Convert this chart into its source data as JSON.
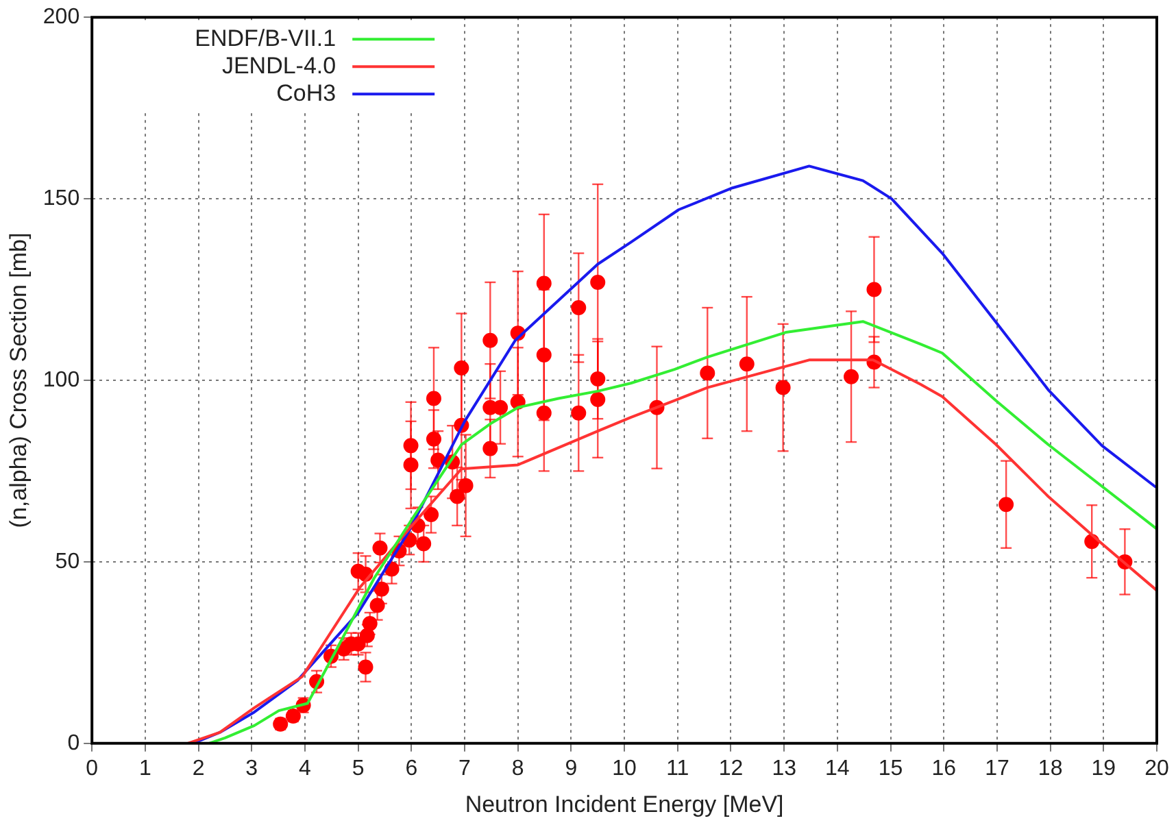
{
  "chart_data": {
    "type": "line",
    "xlabel": "Neutron Incident Energy [MeV]",
    "ylabel": "(n,alpha) Cross Section [mb]",
    "xlim": [
      0,
      20
    ],
    "xticks": [
      0,
      1,
      2,
      3,
      4,
      5,
      6,
      7,
      8,
      9,
      10,
      11,
      12,
      13,
      14,
      15,
      16,
      17,
      18,
      19,
      20
    ],
    "ylim": [
      0,
      200
    ],
    "yticks": [
      0,
      50,
      100,
      150,
      200
    ],
    "grid": true,
    "legend": "top left",
    "marker": "none",
    "line_style": "solid",
    "series": [
      {
        "name": "ENDF/B-VII.1",
        "color": "#33ee33",
        "x": [
          2.2,
          2.5,
          3.05,
          3.51,
          4.05,
          4.6,
          5.3,
          6.04,
          6.94,
          7.48,
          8.0,
          8.76,
          9.5,
          10.12,
          10.94,
          11.56,
          13.03,
          14.48,
          15.56,
          15.97,
          16.98,
          17.96,
          19.97,
          20
        ],
        "values": [
          0,
          1.5,
          4.9,
          9,
          11,
          26,
          45.5,
          62.4,
          82.3,
          88,
          92.5,
          95,
          97,
          99.2,
          103,
          106.4,
          113.2,
          116.2,
          110,
          107.5,
          94.4,
          82.3,
          59.4,
          59
        ]
      },
      {
        "name": "JENDL-4.0",
        "color": "#ff3333",
        "x": [
          1.8,
          2.4,
          3.05,
          3.95,
          5.03,
          6.04,
          6.94,
          8.0,
          9.5,
          10.12,
          10.94,
          11.56,
          13.47,
          14.67,
          15.56,
          15.97,
          16.98,
          17.96,
          18.97,
          19.97,
          20
        ],
        "values": [
          0,
          3,
          9.8,
          18.4,
          42.9,
          60.5,
          75.6,
          76.7,
          86,
          89.8,
          94.4,
          98,
          105.6,
          105.6,
          98.9,
          95.5,
          82.3,
          68,
          55,
          42.5,
          42
        ]
      },
      {
        "name": "CoH3",
        "color": "#1a1aee",
        "x": [
          1.9,
          2.4,
          3.05,
          3.86,
          5.0,
          5.96,
          7.0,
          7.95,
          9.5,
          10.12,
          11.02,
          12.03,
          13.47,
          14.48,
          15.02,
          15.97,
          16.98,
          17.96,
          18.97,
          19.97,
          20
        ],
        "values": [
          0,
          3,
          8.6,
          17.3,
          36,
          58.6,
          88.7,
          111,
          132,
          138,
          147,
          153,
          159,
          155,
          150,
          135,
          116,
          97.4,
          82,
          70.7,
          70.5
        ]
      },
      {
        "type": "scatter",
        "color": "#ff0000",
        "marker": "circle",
        "x": [
          3.54,
          3.78,
          3.97,
          4.22,
          4.49,
          4.73,
          4.87,
          5.0,
          5.14,
          5.17,
          5.22,
          5.36,
          5.0,
          5.14,
          5.41,
          5.44,
          5.63,
          5.77,
          5.96,
          5.99,
          5.99,
          6.12,
          6.23,
          6.37,
          6.42,
          6.42,
          6.5,
          6.77,
          6.86,
          6.94,
          6.94,
          7.02,
          7.48,
          7.48,
          7.48,
          7.67,
          8.0,
          8.0,
          8.49,
          8.49,
          8.49,
          9.14,
          9.14,
          9.5,
          9.5,
          9.5,
          10.61,
          11.56,
          12.3,
          12.98,
          14.26,
          14.69,
          14.69,
          17.17,
          18.78,
          19.4
        ],
        "values": [
          5.3,
          7.5,
          10.5,
          17,
          24,
          26,
          27.4,
          27.4,
          21,
          29.7,
          33,
          38,
          47.4,
          46.6,
          53.8,
          42.5,
          48,
          53,
          56,
          76.7,
          82,
          60,
          55,
          63,
          95,
          83.8,
          78,
          77.5,
          68,
          103.4,
          87.6,
          71,
          111,
          92.5,
          81.2,
          92.5,
          113,
          94,
          126.7,
          107,
          91,
          120,
          91,
          127,
          100.4,
          94.7,
          92.5,
          102,
          104.5,
          98,
          101,
          125,
          105,
          65.8,
          55.6,
          50
        ],
        "errors": [
          1.5,
          1.5,
          2,
          3,
          3,
          3,
          3,
          3,
          4,
          3,
          3,
          4,
          5,
          5,
          4,
          4,
          4,
          4,
          4,
          12,
          12,
          5,
          5,
          5,
          14,
          8,
          8,
          10,
          8,
          15,
          15,
          14,
          16,
          12,
          8,
          10,
          17,
          15,
          19,
          18,
          16,
          15,
          16,
          27,
          11,
          16,
          16.8,
          18,
          18.5,
          17.5,
          18,
          14.5,
          7,
          12,
          10,
          9
        ]
      }
    ]
  }
}
